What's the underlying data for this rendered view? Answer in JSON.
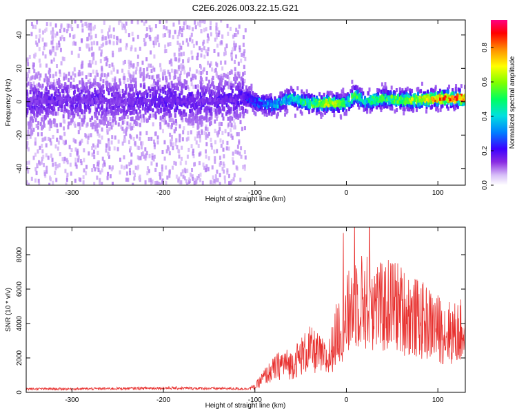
{
  "title": "C2E6.2026.003.22.15.G21",
  "chart_data": [
    {
      "type": "heatmap",
      "xlabel": "Height of straight line (km)",
      "ylabel": "Frequency (Hz)",
      "xlim": [
        -350,
        130
      ],
      "ylim": [
        -50,
        49
      ],
      "x_ticks": [
        "-300",
        "-200",
        "-100",
        "0",
        "100"
      ],
      "y_ticks": [
        "-40",
        "-20",
        "0",
        "20",
        "40"
      ],
      "colorbar": {
        "label": "Normalized spectral amplitude",
        "range": [
          0,
          0.96
        ],
        "ticks": [
          "0.0",
          "0.2",
          "0.4",
          "0.6",
          "0.8"
        ]
      },
      "ridge": {
        "x": [
          -350,
          -300,
          -250,
          -200,
          -150,
          -110,
          -100,
          -80,
          -60,
          -40,
          -20,
          0,
          10,
          20,
          40,
          60,
          80,
          100,
          130
        ],
        "frequency": [
          0,
          1,
          0,
          1,
          0,
          3,
          0,
          -2,
          2,
          -1,
          -1,
          -1,
          4,
          0,
          2,
          1,
          1,
          2,
          2
        ],
        "amplitude": [
          0.2,
          0.22,
          0.2,
          0.25,
          0.22,
          0.25,
          0.35,
          0.45,
          0.5,
          0.6,
          0.75,
          0.55,
          0.6,
          0.55,
          0.6,
          0.65,
          0.75,
          0.85,
          0.9
        ]
      },
      "scatter_region": {
        "x": [
          -350,
          -110
        ],
        "frequency": [
          -50,
          49
        ]
      },
      "grid": false,
      "legend": "colorbar right"
    },
    {
      "type": "line",
      "xlabel": "Height of straight line (km)",
      "ylabel": "SNR (10 * v/v)",
      "xlim": [
        -350,
        130
      ],
      "ylim": [
        0,
        9600
      ],
      "x_ticks": [
        "-300",
        "-200",
        "-100",
        "0",
        "100"
      ],
      "y_ticks": [
        "0",
        "2000",
        "4000",
        "6000",
        "8000"
      ],
      "color": "#e8302e",
      "series": [
        {
          "x": [
            -350,
            -300,
            -250,
            -200,
            -150,
            -110,
            -100,
            -90,
            -80,
            -70,
            -60,
            -50,
            -40,
            -30,
            -20,
            -10,
            0,
            10,
            20,
            30,
            40,
            50,
            60,
            70,
            80,
            90,
            100,
            110,
            120,
            130
          ],
          "values": [
            200,
            200,
            220,
            250,
            230,
            210,
            300,
            900,
            1300,
            1700,
            1600,
            2100,
            2500,
            2200,
            1800,
            3500,
            4300,
            5500,
            5200,
            5200,
            4800,
            5200,
            4800,
            4500,
            4200,
            4000,
            3700,
            3500,
            3400,
            3600
          ]
        }
      ],
      "grid": false
    }
  ]
}
